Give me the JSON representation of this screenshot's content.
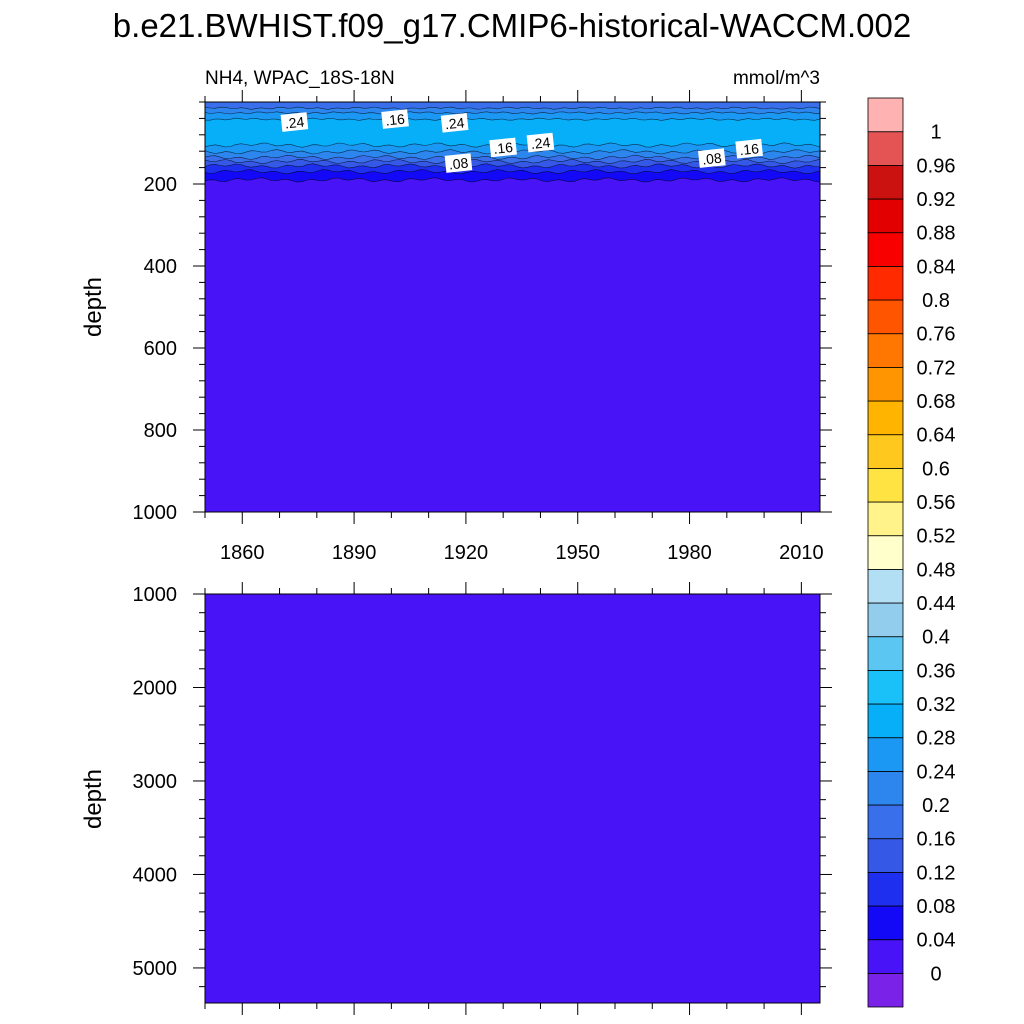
{
  "title": "b.e21.BWHIST.f09_g17.CMIP6-historical-WACCM.002",
  "chart_data": {
    "type": "heatmap",
    "variable_label": "NH4, WPAC_18S-18N",
    "units_label": "mmol/m^3",
    "x_ticks": [
      1860,
      1890,
      1920,
      1950,
      1980,
      2010
    ],
    "xlim": [
      1850,
      2015
    ],
    "panels": [
      {
        "ylabel": "depth",
        "ylim": [
          0,
          1000
        ],
        "y_ticks": [
          200,
          400,
          600,
          800,
          1000
        ],
        "depth_profile": [
          {
            "depth": 0,
            "value": 0.18
          },
          {
            "depth": 15,
            "value": 0.2
          },
          {
            "depth": 35,
            "value": 0.27
          },
          {
            "depth": 55,
            "value": 0.3
          },
          {
            "depth": 75,
            "value": 0.31
          },
          {
            "depth": 95,
            "value": 0.3
          },
          {
            "depth": 115,
            "value": 0.26
          },
          {
            "depth": 135,
            "value": 0.2
          },
          {
            "depth": 150,
            "value": 0.14
          },
          {
            "depth": 165,
            "value": 0.09
          },
          {
            "depth": 180,
            "value": 0.06
          },
          {
            "depth": 195,
            "value": 0.03
          },
          {
            "depth": 230,
            "value": 0.01
          },
          {
            "depth": 1000,
            "value": 0.0
          }
        ],
        "contour_labels": [
          {
            "text": ".24",
            "year": 1874,
            "depth": 50
          },
          {
            "text": ".16",
            "year": 1901,
            "depth": 43
          },
          {
            "text": ".24",
            "year": 1917,
            "depth": 52
          },
          {
            "text": ".08",
            "year": 1918,
            "depth": 150
          },
          {
            "text": ".16",
            "year": 1930,
            "depth": 112
          },
          {
            "text": ".24",
            "year": 1940,
            "depth": 100
          },
          {
            "text": ".08",
            "year": 1986,
            "depth": 138
          },
          {
            "text": ".16",
            "year": 1996,
            "depth": 115
          }
        ]
      },
      {
        "ylabel": "depth",
        "ylim": [
          1000,
          5375
        ],
        "y_ticks": [
          1000,
          2000,
          3000,
          4000,
          5000
        ],
        "uniform_value": 0.0
      }
    ],
    "colorbar": {
      "levels": [
        0,
        0.04,
        0.08,
        0.12,
        0.16,
        0.2,
        0.24,
        0.28,
        0.32,
        0.36,
        0.4,
        0.44,
        0.48,
        0.52,
        0.56,
        0.6,
        0.64,
        0.68,
        0.72,
        0.76,
        0.8,
        0.84,
        0.88,
        0.92,
        0.96,
        1
      ],
      "labels": [
        "0",
        "0.04",
        "0.08",
        "0.12",
        "0.16",
        "0.2",
        "0.24",
        "0.28",
        "0.32",
        "0.36",
        "0.4",
        "0.44",
        "0.48",
        "0.52",
        "0.56",
        "0.6",
        "0.64",
        "0.68",
        "0.72",
        "0.76",
        "0.8",
        "0.84",
        "0.88",
        "0.92",
        "0.96",
        "1"
      ],
      "colors": [
        "#7a22e8",
        "#4814f7",
        "#1409f7",
        "#1e2ff0",
        "#3658e6",
        "#3a6fec",
        "#2c86ee",
        "#1a98f4",
        "#07aef8",
        "#1ac0f8",
        "#5cc6f3",
        "#92cdee",
        "#b2dff3",
        "#ffffcc",
        "#fff38a",
        "#ffe343",
        "#ffc81e",
        "#ffb400",
        "#ff9500",
        "#ff7700",
        "#ff5400",
        "#ff2a00",
        "#f80000",
        "#e20000",
        "#cc1111",
        "#e45454",
        "#ffb2b2"
      ]
    }
  }
}
